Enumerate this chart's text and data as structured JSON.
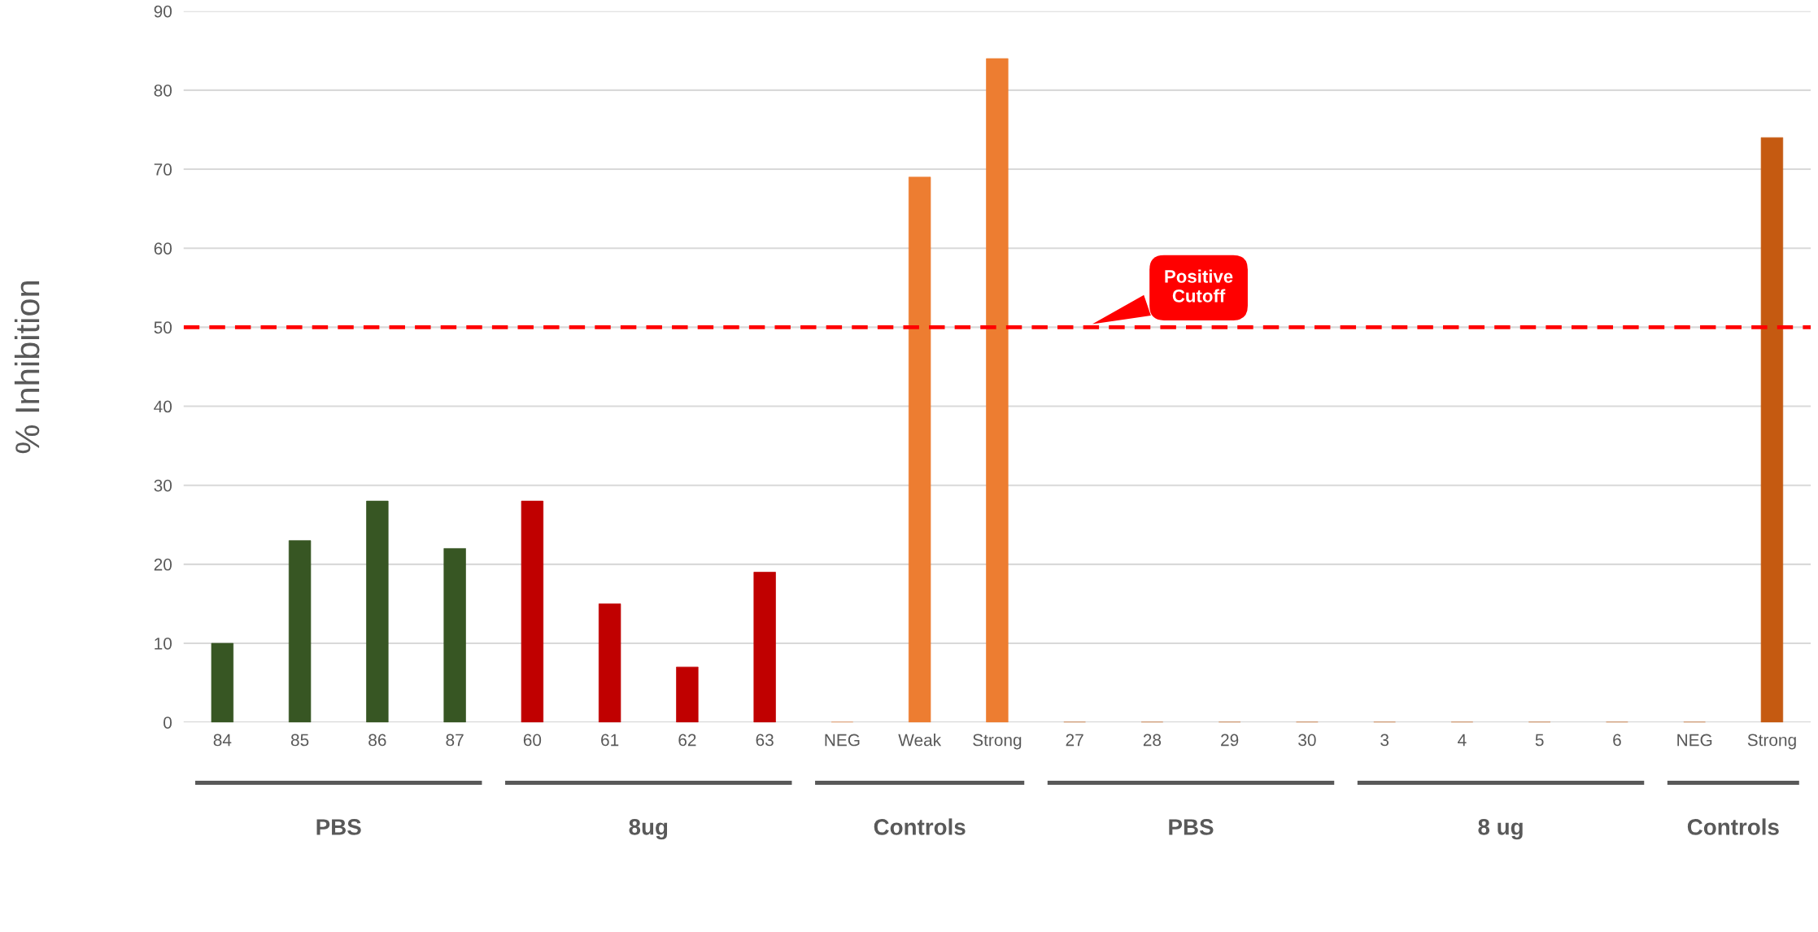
{
  "chart_data": {
    "type": "bar",
    "ylabel": "% Inhibition",
    "categories": [
      "84",
      "85",
      "86",
      "87",
      "60",
      "61",
      "62",
      "63",
      "NEG",
      "Weak",
      "Strong",
      "27",
      "28",
      "29",
      "30",
      "3",
      "4",
      "5",
      "6",
      "NEG",
      "Strong"
    ],
    "values": [
      10,
      23,
      28,
      22,
      28,
      15,
      7,
      19,
      0,
      69,
      84,
      0,
      0,
      0,
      0,
      0,
      0,
      0,
      0,
      0,
      74
    ],
    "colors": [
      "#375623",
      "#375623",
      "#375623",
      "#375623",
      "#c00000",
      "#c00000",
      "#c00000",
      "#c00000",
      "#ed7d31",
      "#ed7d31",
      "#ed7d31",
      "#c55a11",
      "#c55a11",
      "#c55a11",
      "#c55a11",
      "#c55a11",
      "#c55a11",
      "#c55a11",
      "#c55a11",
      "#c55a11",
      "#c55a11"
    ],
    "ylim": [
      0,
      90
    ],
    "yticks": [
      0,
      10,
      20,
      30,
      40,
      50,
      60,
      70,
      80,
      90
    ],
    "grid": "y",
    "ref_lines": [
      {
        "axis": "y",
        "value": 50,
        "label": "Positive\nCutoff",
        "color": "#ff0000",
        "line_style": "dashed"
      }
    ],
    "annotations": [
      "PBS",
      "8ug",
      "Controls",
      "PBS",
      "8 ug",
      "Controls"
    ]
  }
}
